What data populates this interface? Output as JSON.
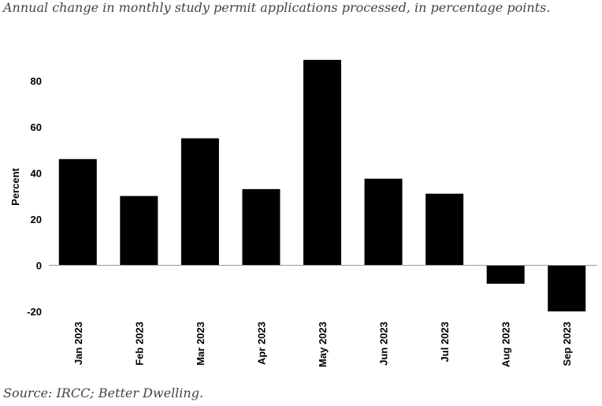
{
  "chart_data": {
    "type": "bar",
    "title": "Annual change in monthly study permit applications processed, in percentage points.",
    "source": "Source: IRCC; Better Dwelling.",
    "y_label": "Percent",
    "categories": [
      "Jan 2023",
      "Feb 2023",
      "Mar 2023",
      "Apr 2023",
      "May 2023",
      "Jun 2023",
      "Jul 2023",
      "Aug 2023",
      "Sep 2023"
    ],
    "values": [
      46,
      30,
      55,
      33,
      89,
      37.5,
      31,
      -8,
      -20
    ],
    "color": "#000000",
    "ylim": [
      -20,
      90
    ],
    "yticks": [
      -20,
      0,
      20,
      40,
      60,
      80
    ],
    "grid": false
  }
}
